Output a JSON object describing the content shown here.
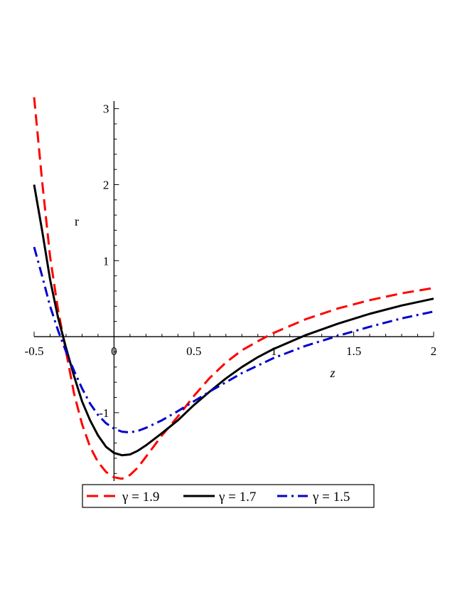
{
  "chart_data": {
    "type": "line",
    "title": "",
    "xlabel": "z",
    "ylabel": "r",
    "xlim": [
      -0.5,
      2
    ],
    "ylim": [
      -1.9,
      3.1
    ],
    "grid": false,
    "legend_position": "bottom",
    "x_ticks": [
      {
        "value": -0.5,
        "label": "-0.5"
      },
      {
        "value": 0,
        "label": "0"
      },
      {
        "value": 0.5,
        "label": "0.5"
      },
      {
        "value": 1,
        "label": "1"
      },
      {
        "value": 1.5,
        "label": "1.5"
      },
      {
        "value": 2,
        "label": "2"
      }
    ],
    "y_ticks": [
      {
        "value": -1,
        "label": "-1"
      },
      {
        "value": 1,
        "label": "1"
      },
      {
        "value": 2,
        "label": "2"
      },
      {
        "value": 3,
        "label": "3"
      }
    ],
    "series": [
      {
        "name": "γ = 1.9",
        "color": "#ff0000",
        "style": "dash",
        "points": [
          [
            -0.5,
            3.15
          ],
          [
            -0.45,
            2.05
          ],
          [
            -0.4,
            1.05
          ],
          [
            -0.35,
            0.35
          ],
          [
            -0.3,
            -0.2
          ],
          [
            -0.25,
            -0.75
          ],
          [
            -0.2,
            -1.15
          ],
          [
            -0.15,
            -1.45
          ],
          [
            -0.1,
            -1.65
          ],
          [
            -0.05,
            -1.78
          ],
          [
            0.0,
            -1.85
          ],
          [
            0.05,
            -1.87
          ],
          [
            0.1,
            -1.82
          ],
          [
            0.15,
            -1.72
          ],
          [
            0.2,
            -1.58
          ],
          [
            0.3,
            -1.3
          ],
          [
            0.4,
            -1.05
          ],
          [
            0.5,
            -0.78
          ],
          [
            0.6,
            -0.54
          ],
          [
            0.7,
            -0.34
          ],
          [
            0.8,
            -0.18
          ],
          [
            0.9,
            -0.06
          ],
          [
            1.0,
            0.05
          ],
          [
            1.2,
            0.23
          ],
          [
            1.4,
            0.37
          ],
          [
            1.6,
            0.48
          ],
          [
            1.8,
            0.57
          ],
          [
            2.0,
            0.64
          ]
        ]
      },
      {
        "name": "γ = 1.7",
        "color": "#000000",
        "style": "solid",
        "points": [
          [
            -0.5,
            2.0
          ],
          [
            -0.45,
            1.4
          ],
          [
            -0.4,
            0.75
          ],
          [
            -0.35,
            0.25
          ],
          [
            -0.3,
            -0.15
          ],
          [
            -0.25,
            -0.52
          ],
          [
            -0.2,
            -0.85
          ],
          [
            -0.15,
            -1.1
          ],
          [
            -0.1,
            -1.3
          ],
          [
            -0.05,
            -1.45
          ],
          [
            0.0,
            -1.53
          ],
          [
            0.05,
            -1.56
          ],
          [
            0.1,
            -1.55
          ],
          [
            0.15,
            -1.5
          ],
          [
            0.2,
            -1.43
          ],
          [
            0.3,
            -1.27
          ],
          [
            0.4,
            -1.1
          ],
          [
            0.5,
            -0.9
          ],
          [
            0.6,
            -0.72
          ],
          [
            0.7,
            -0.55
          ],
          [
            0.8,
            -0.4
          ],
          [
            0.9,
            -0.27
          ],
          [
            1.0,
            -0.16
          ],
          [
            1.2,
            0.02
          ],
          [
            1.4,
            0.17
          ],
          [
            1.6,
            0.3
          ],
          [
            1.8,
            0.41
          ],
          [
            2.0,
            0.5
          ]
        ]
      },
      {
        "name": "γ = 1.5",
        "color": "#0000cc",
        "style": "dashdot",
        "points": [
          [
            -0.5,
            1.18
          ],
          [
            -0.45,
            0.8
          ],
          [
            -0.4,
            0.4
          ],
          [
            -0.35,
            0.08
          ],
          [
            -0.3,
            -0.2
          ],
          [
            -0.25,
            -0.45
          ],
          [
            -0.2,
            -0.68
          ],
          [
            -0.15,
            -0.88
          ],
          [
            -0.1,
            -1.03
          ],
          [
            -0.05,
            -1.14
          ],
          [
            0.0,
            -1.21
          ],
          [
            0.05,
            -1.25
          ],
          [
            0.1,
            -1.26
          ],
          [
            0.15,
            -1.24
          ],
          [
            0.2,
            -1.2
          ],
          [
            0.3,
            -1.1
          ],
          [
            0.4,
            -0.98
          ],
          [
            0.5,
            -0.85
          ],
          [
            0.6,
            -0.72
          ],
          [
            0.7,
            -0.6
          ],
          [
            0.8,
            -0.48
          ],
          [
            0.9,
            -0.38
          ],
          [
            1.0,
            -0.28
          ],
          [
            1.2,
            -0.12
          ],
          [
            1.4,
            0.01
          ],
          [
            1.6,
            0.13
          ],
          [
            1.8,
            0.24
          ],
          [
            2.0,
            0.33
          ]
        ]
      }
    ]
  }
}
